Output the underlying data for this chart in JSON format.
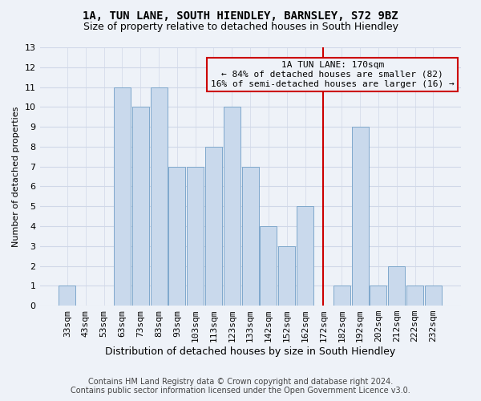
{
  "title": "1A, TUN LANE, SOUTH HIENDLEY, BARNSLEY, S72 9BZ",
  "subtitle": "Size of property relative to detached houses in South Hiendley",
  "xlabel": "Distribution of detached houses by size in South Hiendley",
  "ylabel": "Number of detached properties",
  "footer_line1": "Contains HM Land Registry data © Crown copyright and database right 2024.",
  "footer_line2": "Contains public sector information licensed under the Open Government Licence v3.0.",
  "bin_labels": [
    "33sqm",
    "43sqm",
    "53sqm",
    "63sqm",
    "73sqm",
    "83sqm",
    "93sqm",
    "103sqm",
    "113sqm",
    "123sqm",
    "133sqm",
    "142sqm",
    "152sqm",
    "162sqm",
    "172sqm",
    "182sqm",
    "192sqm",
    "202sqm",
    "212sqm",
    "222sqm",
    "232sqm"
  ],
  "bar_values": [
    1,
    0,
    0,
    11,
    10,
    11,
    7,
    7,
    8,
    10,
    7,
    4,
    3,
    5,
    0,
    1,
    9,
    1,
    2,
    1,
    1
  ],
  "bar_color": "#c9d9ec",
  "bar_edge_color": "#7fa8cc",
  "annotation_text_line1": "1A TUN LANE: 170sqm",
  "annotation_text_line2": "← 84% of detached houses are smaller (82)",
  "annotation_text_line3": "16% of semi-detached houses are larger (16) →",
  "annotation_box_color": "#cc0000",
  "grid_color": "#d0d8e8",
  "background_color": "#eef2f8",
  "ylim": [
    0,
    13
  ],
  "yticks": [
    0,
    1,
    2,
    3,
    4,
    5,
    6,
    7,
    8,
    9,
    10,
    11,
    12,
    13
  ],
  "title_fontsize": 10,
  "subtitle_fontsize": 9,
  "xlabel_fontsize": 9,
  "ylabel_fontsize": 8,
  "tick_fontsize": 8,
  "annotation_fontsize": 8,
  "footer_fontsize": 7,
  "red_line_index": 14
}
